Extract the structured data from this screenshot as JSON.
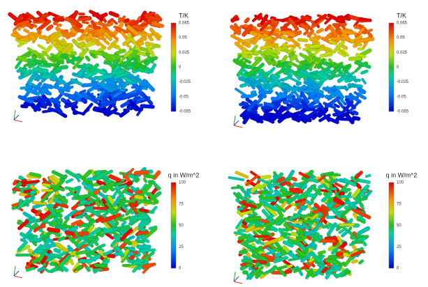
{
  "panels": [
    {
      "colorbar": {
        "title": "T/K",
        "ticks": [
          "0.065",
          "0.05",
          "0.025",
          "0",
          "-0.025",
          "-0.05",
          "-0.065"
        ]
      }
    },
    {
      "colorbar": {
        "title": "T/K",
        "ticks": [
          "0.065",
          "0.05",
          "0.025",
          "0",
          "-0.025",
          "-0.05",
          "-0.065"
        ]
      }
    },
    {
      "colorbar": {
        "title": "q in W/m^2",
        "ticks": [
          "100",
          "75",
          "50",
          "25",
          "0"
        ]
      }
    },
    {
      "colorbar": {
        "title": "q in W/m^2",
        "ticks": [
          "100",
          "75",
          "50",
          "25",
          "0"
        ]
      }
    }
  ]
}
